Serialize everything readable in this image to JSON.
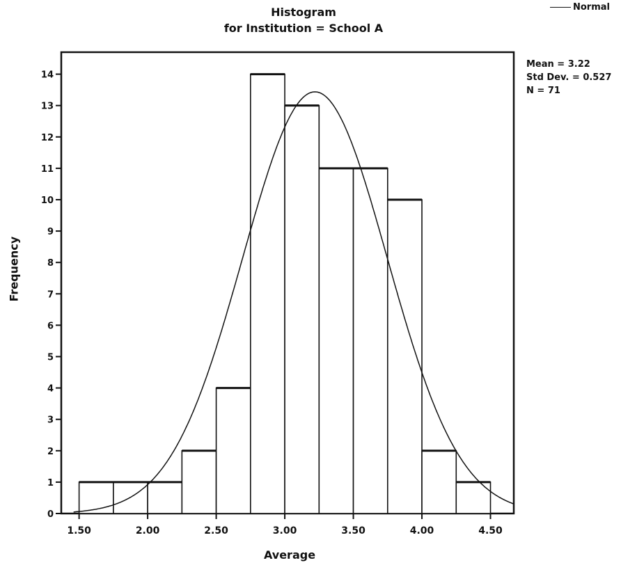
{
  "chart_data": {
    "type": "bar",
    "title_line1": "Histogram",
    "title_line2": "for Institution = School A",
    "xlabel": "Average",
    "ylabel": "Frequency",
    "x_ticks": [
      "1.50",
      "2.00",
      "2.50",
      "3.00",
      "3.50",
      "4.00",
      "4.50"
    ],
    "y_ticks": [
      "0",
      "1",
      "2",
      "3",
      "4",
      "5",
      "6",
      "7",
      "8",
      "9",
      "10",
      "11",
      "12",
      "13",
      "14"
    ],
    "bin_edges": [
      1.5,
      1.75,
      2.0,
      2.25,
      2.5,
      2.75,
      3.0,
      3.25,
      3.5,
      3.75,
      4.0,
      4.25,
      4.5
    ],
    "values": [
      1,
      1,
      1,
      2,
      4,
      14,
      13,
      11,
      11,
      10,
      2,
      1
    ],
    "xlim": [
      1.37,
      4.67
    ],
    "ylim": [
      0,
      14.7
    ],
    "normal_curve": {
      "mean": 3.22,
      "std": 0.527,
      "n": 71,
      "bin_width": 0.25
    },
    "legend": {
      "label": "Normal",
      "placement": "top-right"
    },
    "stats": {
      "mean": "Mean = 3.22",
      "std_dev": "Std Dev. = 0.527",
      "n": "N = 71"
    }
  }
}
